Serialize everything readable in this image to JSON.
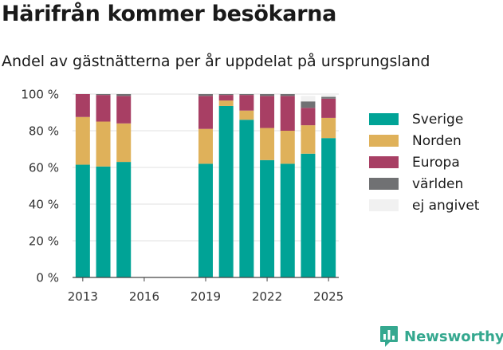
{
  "title": "Härifrån kommer besökarna",
  "subtitle": "Andel av gästnätterna per år uppdelat på ursprungsland",
  "brand": {
    "label": "Newsworthy",
    "icon": "newsworthy-logo-icon",
    "color": "#35a88f"
  },
  "chart_data": {
    "type": "bar",
    "stacked": true,
    "categories": [
      "2013",
      "2014",
      "2015",
      "2016",
      "2017",
      "2018",
      "2019",
      "2020",
      "2021",
      "2022",
      "2023",
      "2024",
      "2025"
    ],
    "x_ticks": [
      "2013",
      "2016",
      "2019",
      "2022",
      "2025"
    ],
    "y_ticks": [
      "0 %",
      "20 %",
      "40 %",
      "60 %",
      "80 %",
      "100 %"
    ],
    "ylim": [
      0,
      100
    ],
    "grid": true,
    "legend_position": "right",
    "series": [
      {
        "name": "Sverige",
        "color": "#00a396",
        "values": [
          61.5,
          60.5,
          63,
          null,
          null,
          null,
          62,
          93.5,
          86,
          64,
          62,
          67.5,
          76
        ]
      },
      {
        "name": "Norden",
        "color": "#dfb15a",
        "values": [
          26,
          24.5,
          21,
          null,
          null,
          null,
          19,
          3,
          5,
          17.5,
          18,
          15.5,
          11
        ]
      },
      {
        "name": "Europa",
        "color": "#a83f64",
        "values": [
          12.5,
          14.5,
          15,
          null,
          null,
          null,
          18,
          3,
          8.5,
          17.5,
          19,
          9.5,
          10.5
        ]
      },
      {
        "name": "världen",
        "color": "#707173",
        "values": [
          0,
          0.5,
          1,
          null,
          null,
          null,
          1,
          0.5,
          0.5,
          1,
          1,
          3.5,
          1
        ]
      },
      {
        "name": "ej angivet",
        "color": "#f1f1f1",
        "values": [
          0,
          0,
          0,
          null,
          null,
          null,
          0,
          0,
          0,
          0,
          0,
          3,
          1.5
        ]
      }
    ]
  }
}
